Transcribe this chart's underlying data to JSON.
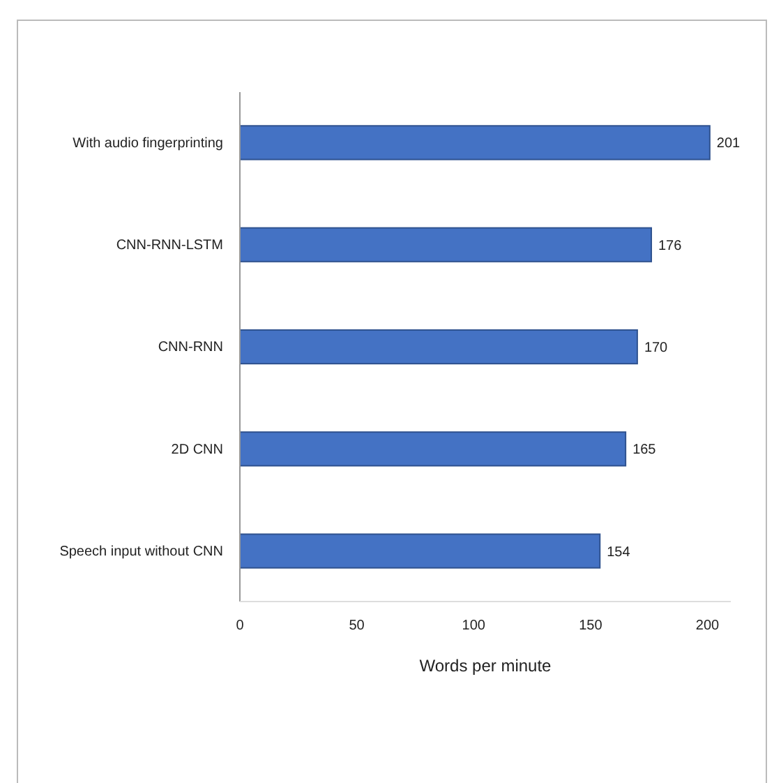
{
  "chart_data": {
    "type": "bar",
    "orientation": "horizontal",
    "xlabel": "Words per minute",
    "categories": [
      "With audio fingerprinting",
      "CNN-RNN-LSTM",
      "CNN-RNN",
      "2D CNN",
      "Speech input without CNN"
    ],
    "values": [
      201,
      176,
      170,
      165,
      154
    ],
    "color": "#4472c4",
    "xlim": [
      0,
      210
    ],
    "xticks": [
      0,
      50,
      100,
      150,
      200
    ],
    "data_labels": true,
    "grid": false
  }
}
